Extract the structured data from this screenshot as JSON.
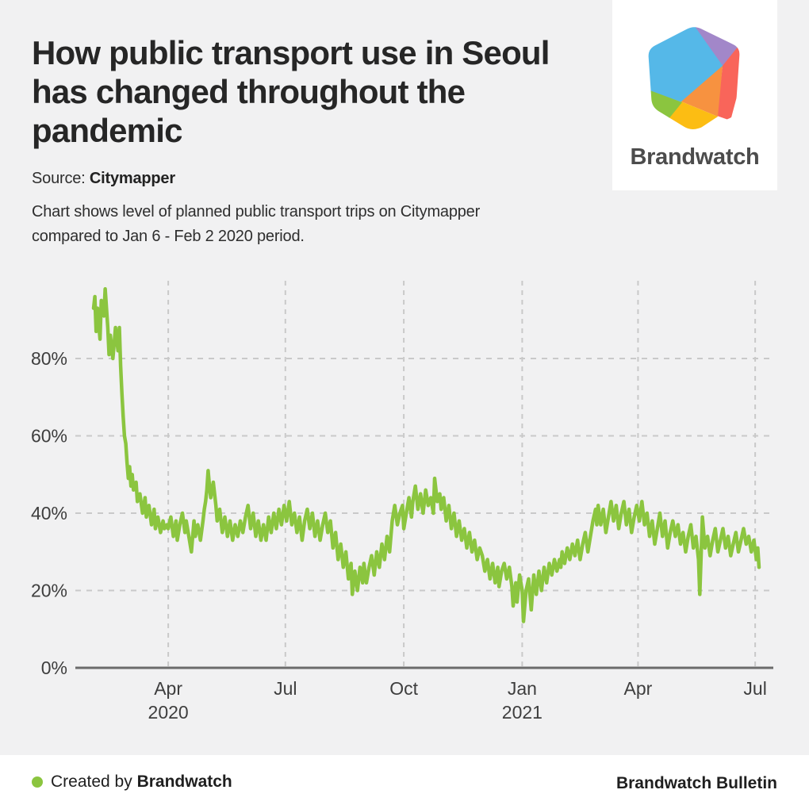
{
  "header": {
    "title": "How public transport use in Seoul has changed throughout the pandemic",
    "source_label": "Source:",
    "source_value": "Citymapper",
    "description_lines": [
      "Chart shows level of planned public transport trips on Citymapper",
      "compared to Jan 6 - Feb 2 2020 period."
    ]
  },
  "logo": {
    "wordmark": "Brandwatch",
    "colors": {
      "blue": "#55b8e8",
      "purple": "#a287c9",
      "coral": "#f9655a",
      "orange": "#f79240",
      "yellow": "#fcbd13",
      "green": "#8bc53f"
    }
  },
  "footer": {
    "created_by_prefix": "Created by ",
    "created_by_name": "Brandwatch",
    "right_text": "Brandwatch Bulletin",
    "dot_color": "#8bc53f"
  },
  "chart_data": {
    "type": "line",
    "series_name": "Planned public transport trips in Seoul vs Jan 6 - Feb 2 2020 baseline",
    "unit": "%",
    "line_color": "#8bc53f",
    "grid": "dashed",
    "ylim": [
      0,
      100
    ],
    "y_ticks": [
      0,
      20,
      40,
      60,
      80
    ],
    "y_tick_suffix": "%",
    "x_unit": "days",
    "x_ticks": [
      {
        "label": "Apr",
        "year": "2020",
        "day": 58
      },
      {
        "label": "Jul",
        "day": 149
      },
      {
        "label": "Oct",
        "day": 241
      },
      {
        "label": "Jan",
        "year": "2021",
        "day": 333
      },
      {
        "label": "Apr",
        "day": 423
      },
      {
        "label": "Jul",
        "day": 514
      }
    ],
    "points": [
      [
        0,
        93
      ],
      [
        1,
        96
      ],
      [
        2,
        87
      ],
      [
        3,
        93
      ],
      [
        5,
        85
      ],
      [
        6,
        95
      ],
      [
        8,
        91
      ],
      [
        9,
        98
      ],
      [
        11,
        88
      ],
      [
        12,
        81
      ],
      [
        13,
        86
      ],
      [
        15,
        80
      ],
      [
        16,
        84
      ],
      [
        17,
        88
      ],
      [
        19,
        82
      ],
      [
        20,
        88
      ],
      [
        21,
        78
      ],
      [
        22,
        71
      ],
      [
        23,
        65
      ],
      [
        24,
        60
      ],
      [
        25,
        58
      ],
      [
        26,
        53
      ],
      [
        27,
        49
      ],
      [
        28,
        52
      ],
      [
        29,
        47
      ],
      [
        30,
        50
      ],
      [
        31,
        46
      ],
      [
        33,
        48
      ],
      [
        34,
        43
      ],
      [
        36,
        45
      ],
      [
        38,
        40
      ],
      [
        40,
        44
      ],
      [
        41,
        39
      ],
      [
        43,
        42
      ],
      [
        45,
        37
      ],
      [
        47,
        41
      ],
      [
        48,
        36
      ],
      [
        50,
        39
      ],
      [
        52,
        35
      ],
      [
        54,
        38
      ],
      [
        55,
        36
      ],
      [
        57,
        37
      ],
      [
        58,
        36
      ],
      [
        60,
        39
      ],
      [
        62,
        34
      ],
      [
        64,
        38
      ],
      [
        65,
        33
      ],
      [
        67,
        37
      ],
      [
        69,
        40
      ],
      [
        71,
        35
      ],
      [
        72,
        38
      ],
      [
        74,
        34
      ],
      [
        76,
        30
      ],
      [
        78,
        38
      ],
      [
        79,
        34
      ],
      [
        81,
        37
      ],
      [
        83,
        33
      ],
      [
        85,
        38
      ],
      [
        86,
        41
      ],
      [
        87,
        43
      ],
      [
        88,
        46
      ],
      [
        89,
        51
      ],
      [
        90,
        47
      ],
      [
        91,
        44
      ],
      [
        93,
        48
      ],
      [
        95,
        42
      ],
      [
        96,
        38
      ],
      [
        98,
        41
      ],
      [
        100,
        35
      ],
      [
        102,
        39
      ],
      [
        104,
        34
      ],
      [
        106,
        38
      ],
      [
        108,
        33
      ],
      [
        110,
        37
      ],
      [
        112,
        34
      ],
      [
        114,
        38
      ],
      [
        116,
        35
      ],
      [
        118,
        39
      ],
      [
        120,
        42
      ],
      [
        122,
        36
      ],
      [
        124,
        40
      ],
      [
        126,
        34
      ],
      [
        128,
        38
      ],
      [
        130,
        33
      ],
      [
        132,
        37
      ],
      [
        134,
        33
      ],
      [
        136,
        39
      ],
      [
        138,
        35
      ],
      [
        140,
        40
      ],
      [
        142,
        36
      ],
      [
        144,
        41
      ],
      [
        146,
        37
      ],
      [
        148,
        42
      ],
      [
        150,
        38
      ],
      [
        152,
        43
      ],
      [
        154,
        37
      ],
      [
        156,
        40
      ],
      [
        158,
        35
      ],
      [
        160,
        39
      ],
      [
        162,
        33
      ],
      [
        164,
        38
      ],
      [
        166,
        41
      ],
      [
        168,
        36
      ],
      [
        170,
        40
      ],
      [
        172,
        34
      ],
      [
        174,
        38
      ],
      [
        176,
        33
      ],
      [
        178,
        37
      ],
      [
        180,
        40
      ],
      [
        182,
        35
      ],
      [
        184,
        38
      ],
      [
        186,
        31
      ],
      [
        188,
        35
      ],
      [
        190,
        28
      ],
      [
        192,
        32
      ],
      [
        194,
        26
      ],
      [
        196,
        30
      ],
      [
        198,
        23
      ],
      [
        200,
        27
      ],
      [
        201,
        19
      ],
      [
        203,
        25
      ],
      [
        205,
        20
      ],
      [
        207,
        26
      ],
      [
        209,
        22
      ],
      [
        210,
        27
      ],
      [
        212,
        22
      ],
      [
        214,
        26
      ],
      [
        216,
        29
      ],
      [
        218,
        24
      ],
      [
        220,
        30
      ],
      [
        222,
        26
      ],
      [
        224,
        32
      ],
      [
        226,
        28
      ],
      [
        228,
        34
      ],
      [
        230,
        30
      ],
      [
        232,
        38
      ],
      [
        234,
        42
      ],
      [
        236,
        37
      ],
      [
        238,
        40
      ],
      [
        240,
        42
      ],
      [
        241,
        36
      ],
      [
        243,
        40
      ],
      [
        245,
        44
      ],
      [
        247,
        39
      ],
      [
        248,
        43
      ],
      [
        250,
        47
      ],
      [
        252,
        41
      ],
      [
        254,
        45
      ],
      [
        256,
        40
      ],
      [
        258,
        46
      ],
      [
        260,
        42
      ],
      [
        262,
        44
      ],
      [
        264,
        40
      ],
      [
        265,
        49
      ],
      [
        267,
        43
      ],
      [
        269,
        45
      ],
      [
        270,
        41
      ],
      [
        272,
        44
      ],
      [
        274,
        38
      ],
      [
        276,
        42
      ],
      [
        278,
        36
      ],
      [
        280,
        40
      ],
      [
        282,
        34
      ],
      [
        284,
        38
      ],
      [
        286,
        33
      ],
      [
        288,
        36
      ],
      [
        290,
        31
      ],
      [
        292,
        35
      ],
      [
        294,
        30
      ],
      [
        296,
        33
      ],
      [
        298,
        28
      ],
      [
        300,
        31
      ],
      [
        302,
        29
      ],
      [
        304,
        25
      ],
      [
        306,
        28
      ],
      [
        308,
        23
      ],
      [
        310,
        27
      ],
      [
        312,
        22
      ],
      [
        314,
        26
      ],
      [
        315,
        21
      ],
      [
        317,
        25
      ],
      [
        319,
        27
      ],
      [
        321,
        23
      ],
      [
        323,
        26
      ],
      [
        325,
        21
      ],
      [
        326,
        16
      ],
      [
        328,
        22
      ],
      [
        329,
        17
      ],
      [
        331,
        24
      ],
      [
        333,
        20
      ],
      [
        334,
        12
      ],
      [
        336,
        20
      ],
      [
        338,
        23
      ],
      [
        340,
        15
      ],
      [
        342,
        24
      ],
      [
        344,
        19
      ],
      [
        346,
        25
      ],
      [
        348,
        20
      ],
      [
        350,
        26
      ],
      [
        352,
        22
      ],
      [
        354,
        27
      ],
      [
        356,
        24
      ],
      [
        358,
        28
      ],
      [
        360,
        25
      ],
      [
        362,
        28
      ],
      [
        363,
        26
      ],
      [
        364,
        30
      ],
      [
        366,
        27
      ],
      [
        368,
        31
      ],
      [
        370,
        28
      ],
      [
        372,
        32
      ],
      [
        374,
        29
      ],
      [
        376,
        33
      ],
      [
        378,
        28
      ],
      [
        380,
        32
      ],
      [
        382,
        35
      ],
      [
        384,
        30
      ],
      [
        386,
        34
      ],
      [
        388,
        38
      ],
      [
        390,
        41
      ],
      [
        391,
        37
      ],
      [
        392,
        42
      ],
      [
        394,
        37
      ],
      [
        396,
        41
      ],
      [
        398,
        35
      ],
      [
        400,
        39
      ],
      [
        402,
        43
      ],
      [
        404,
        38
      ],
      [
        406,
        42
      ],
      [
        408,
        36
      ],
      [
        410,
        40
      ],
      [
        412,
        43
      ],
      [
        414,
        37
      ],
      [
        416,
        41
      ],
      [
        418,
        35
      ],
      [
        420,
        39
      ],
      [
        422,
        42
      ],
      [
        424,
        38
      ],
      [
        426,
        43
      ],
      [
        428,
        37
      ],
      [
        430,
        40
      ],
      [
        432,
        34
      ],
      [
        434,
        38
      ],
      [
        436,
        32
      ],
      [
        438,
        36
      ],
      [
        440,
        40
      ],
      [
        442,
        34
      ],
      [
        444,
        38
      ],
      [
        446,
        31
      ],
      [
        448,
        35
      ],
      [
        450,
        38
      ],
      [
        452,
        34
      ],
      [
        454,
        37
      ],
      [
        456,
        32
      ],
      [
        458,
        35
      ],
      [
        460,
        30
      ],
      [
        462,
        34
      ],
      [
        464,
        37
      ],
      [
        466,
        31
      ],
      [
        468,
        34
      ],
      [
        470,
        28
      ],
      [
        471,
        19
      ],
      [
        473,
        39
      ],
      [
        475,
        31
      ],
      [
        477,
        34
      ],
      [
        479,
        29
      ],
      [
        481,
        33
      ],
      [
        483,
        36
      ],
      [
        485,
        30
      ],
      [
        487,
        33
      ],
      [
        489,
        36
      ],
      [
        491,
        31
      ],
      [
        493,
        34
      ],
      [
        495,
        29
      ],
      [
        497,
        32
      ],
      [
        499,
        35
      ],
      [
        501,
        30
      ],
      [
        503,
        33
      ],
      [
        505,
        36
      ],
      [
        507,
        32
      ],
      [
        509,
        34
      ],
      [
        511,
        30
      ],
      [
        513,
        33
      ],
      [
        515,
        28
      ],
      [
        516,
        31
      ],
      [
        517,
        26
      ]
    ]
  }
}
